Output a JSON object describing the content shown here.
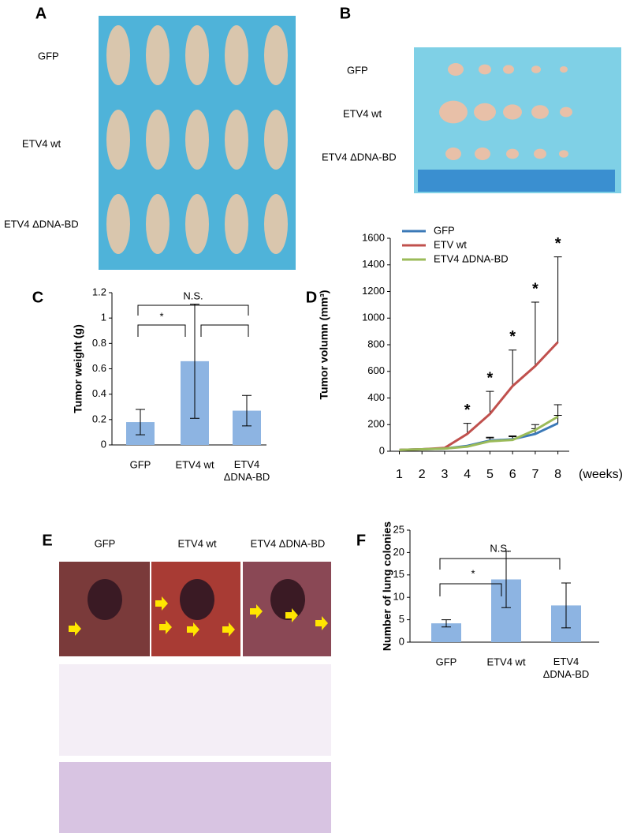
{
  "panels": {
    "A": {
      "letter": "A",
      "rows": [
        "GFP",
        "ETV4 wt",
        "ETV4 ΔDNA-BD"
      ]
    },
    "B": {
      "letter": "B",
      "rows": [
        "GFP",
        "ETV4 wt",
        "ETV4 ΔDNA-BD"
      ]
    },
    "E": {
      "letter": "E",
      "columns": [
        "GFP",
        "ETV4 wt",
        "ETV4 ΔDNA-BD"
      ]
    }
  },
  "chart_data": [
    {
      "type": "bar",
      "letter": "C",
      "y_label": "Tumor weight (g)",
      "categories": [
        "GFP",
        "ETV4 wt",
        "ETV4\nΔDNA-BD"
      ],
      "values": [
        0.18,
        0.66,
        0.27
      ],
      "errors": [
        0.1,
        0.45,
        0.12
      ],
      "color": "#8db4e2",
      "ylim": [
        0,
        1.2
      ],
      "yticks": [
        0,
        0.2,
        0.4,
        0.6,
        0.8,
        1,
        1.2
      ],
      "annotations": [
        "N.S.",
        "*"
      ]
    },
    {
      "type": "line",
      "letter": "D",
      "y_label": "Tumor volumn (mm³)",
      "x_unit": "(weeks)",
      "x": [
        1,
        2,
        3,
        4,
        5,
        6,
        7,
        8
      ],
      "xlim": [
        0.6,
        8.5
      ],
      "xticks": [
        1,
        2,
        3,
        4,
        5,
        6,
        7,
        8
      ],
      "ylim": [
        0,
        1600
      ],
      "yticks": [
        0,
        200,
        400,
        600,
        800,
        1000,
        1200,
        1400,
        1600
      ],
      "series": [
        {
          "name": "GFP",
          "color": "#3b79b7",
          "values": [
            10,
            15,
            20,
            40,
            80,
            90,
            130,
            210
          ],
          "errors": [
            null,
            null,
            null,
            null,
            25,
            25,
            40,
            60
          ]
        },
        {
          "name": "ETV wt",
          "color": "#c0504d",
          "values": [
            10,
            15,
            25,
            130,
            280,
            490,
            640,
            820
          ],
          "errors": [
            null,
            null,
            null,
            80,
            170,
            270,
            480,
            640
          ]
        },
        {
          "name": "ETV4 ΔDNA-BD",
          "color": "#9bbb59",
          "values": [
            10,
            15,
            20,
            35,
            75,
            85,
            160,
            260
          ],
          "errors": [
            null,
            null,
            null,
            null,
            25,
            25,
            40,
            90
          ]
        }
      ],
      "annotations": [
        "*",
        "*",
        "*",
        "*",
        "*"
      ],
      "legend": "top-left"
    },
    {
      "type": "bar",
      "letter": "F",
      "y_label": "Number of lung colonies",
      "categories": [
        "GFP",
        "ETV4 wt",
        "ETV4\nΔDNA-BD"
      ],
      "values": [
        4.2,
        14,
        8.2
      ],
      "errors": [
        0.8,
        6.3,
        5
      ],
      "color": "#8db4e2",
      "ylim": [
        0,
        25
      ],
      "yticks": [
        0,
        5,
        10,
        15,
        20,
        25
      ],
      "annotations": [
        "N.S.",
        "*"
      ]
    }
  ]
}
